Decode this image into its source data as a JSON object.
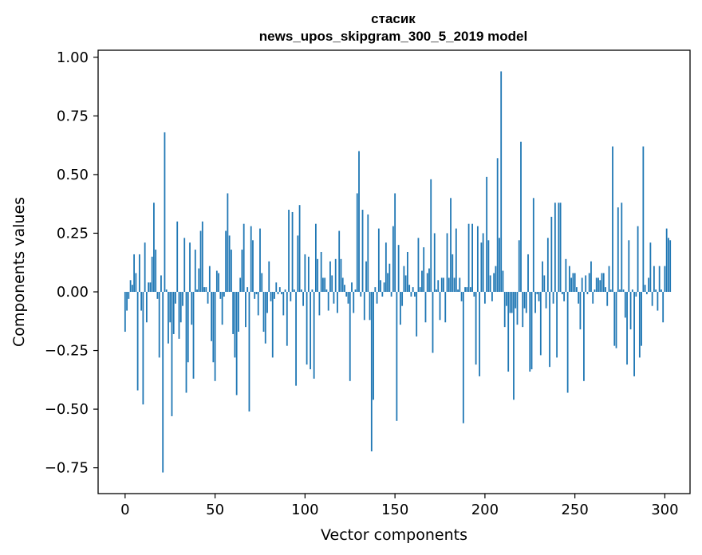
{
  "chart_data": {
    "type": "bar",
    "title_line1": "стасик",
    "title_line2": "news_upos_skipgram_300_5_2019 model",
    "xlabel": "Vector components",
    "ylabel": "Components values",
    "xlim": [
      -15,
      314
    ],
    "ylim": [
      -0.86,
      1.03
    ],
    "xticks": [
      0,
      50,
      100,
      150,
      200,
      250,
      300
    ],
    "xtick_labels": [
      "0",
      "50",
      "100",
      "150",
      "200",
      "250",
      "300"
    ],
    "yticks": [
      -0.75,
      -0.5,
      -0.25,
      0.0,
      0.25,
      0.5,
      0.75,
      1.0
    ],
    "ytick_labels": [
      "−0.75",
      "−0.50",
      "−0.25",
      "0.00",
      "0.25",
      "0.50",
      "0.75",
      "1.00"
    ],
    "bar_color": "#1f77b4",
    "values": [
      -0.17,
      -0.08,
      -0.03,
      0.05,
      0.03,
      0.16,
      0.08,
      -0.42,
      0.16,
      -0.08,
      -0.48,
      0.21,
      -0.13,
      0.04,
      0.04,
      0.15,
      0.38,
      0.18,
      -0.03,
      -0.28,
      0.07,
      -0.77,
      0.68,
      0.01,
      -0.22,
      -0.13,
      -0.53,
      -0.18,
      -0.05,
      0.3,
      -0.2,
      -0.13,
      -0.06,
      0.23,
      -0.43,
      -0.3,
      0.21,
      -0.14,
      -0.37,
      0.18,
      0.01,
      0.1,
      0.26,
      0.3,
      0.02,
      0.02,
      -0.05,
      0.11,
      -0.21,
      -0.3,
      -0.38,
      0.09,
      0.08,
      -0.03,
      -0.14,
      -0.02,
      0.26,
      0.42,
      0.24,
      0.18,
      -0.18,
      -0.28,
      -0.44,
      -0.17,
      0.06,
      0.18,
      0.29,
      -0.15,
      0.02,
      -0.51,
      0.28,
      0.22,
      -0.03,
      -0.01,
      -0.1,
      0.27,
      0.08,
      -0.17,
      -0.22,
      -0.09,
      0.13,
      -0.04,
      -0.28,
      -0.03,
      0.04,
      -0.01,
      0.02,
      -0.01,
      -0.1,
      0.01,
      -0.23,
      0.35,
      -0.04,
      0.34,
      0.01,
      -0.4,
      0.24,
      0.37,
      0.01,
      -0.06,
      0.16,
      -0.31,
      0.15,
      -0.33,
      0.01,
      -0.37,
      0.29,
      0.14,
      -0.1,
      0.17,
      0.06,
      0.06,
      0.01,
      -0.08,
      0.13,
      0.07,
      -0.05,
      0.14,
      -0.09,
      0.26,
      0.14,
      0.06,
      0.03,
      -0.02,
      -0.05,
      -0.38,
      0.04,
      -0.09,
      0.01,
      0.42,
      0.6,
      -0.02,
      0.35,
      -0.12,
      0.13,
      0.33,
      -0.12,
      -0.68,
      -0.46,
      0.02,
      -0.05,
      0.27,
      0.05,
      -0.02,
      0.04,
      0.21,
      0.08,
      0.12,
      -0.02,
      0.28,
      0.42,
      -0.55,
      0.2,
      -0.14,
      -0.06,
      0.11,
      0.07,
      0.17,
      0.03,
      -0.02,
      0.02,
      -0.02,
      -0.19,
      0.23,
      0.02,
      0.09,
      0.19,
      -0.13,
      0.08,
      0.1,
      0.48,
      -0.26,
      0.25,
      0.01,
      0.05,
      -0.12,
      0.06,
      0.06,
      -0.13,
      0.25,
      0.06,
      0.4,
      0.16,
      0.06,
      0.27,
      0.01,
      0.06,
      -0.04,
      -0.56,
      0.02,
      0.02,
      0.29,
      0.02,
      0.29,
      -0.02,
      -0.31,
      0.28,
      -0.36,
      0.21,
      0.25,
      -0.05,
      0.49,
      0.22,
      0.07,
      -0.04,
      0.08,
      0.11,
      0.57,
      0.23,
      0.94,
      0.09,
      -0.15,
      -0.06,
      -0.34,
      -0.09,
      -0.09,
      -0.46,
      -0.07,
      -0.14,
      0.22,
      0.64,
      -0.15,
      -0.07,
      -0.09,
      0.16,
      -0.34,
      -0.33,
      0.4,
      -0.09,
      -0.01,
      -0.04,
      -0.27,
      0.13,
      0.07,
      -0.07,
      0.23,
      -0.32,
      0.32,
      -0.05,
      0.38,
      -0.28,
      0.38,
      0.38,
      -0.01,
      -0.04,
      0.14,
      -0.43,
      0.11,
      0.06,
      0.08,
      0.08,
      0.02,
      -0.05,
      -0.16,
      0.06,
      -0.38,
      0.07,
      -0.01,
      0.08,
      0.13,
      -0.05,
      0.01,
      0.06,
      0.06,
      0.05,
      0.08,
      0.08,
      0.02,
      -0.06,
      0.11,
      0.01,
      0.62,
      -0.23,
      -0.24,
      0.36,
      0.01,
      0.38,
      0.01,
      -0.11,
      -0.31,
      0.22,
      -0.16,
      0.01,
      -0.36,
      -0.02,
      0.28,
      -0.28,
      -0.23,
      0.62,
      0.03,
      -0.01,
      0.06,
      0.21,
      -0.06,
      0.11,
      0.01,
      -0.08,
      0.11,
      0.01,
      -0.13,
      0.11,
      0.27,
      0.23,
      0.22
    ]
  }
}
